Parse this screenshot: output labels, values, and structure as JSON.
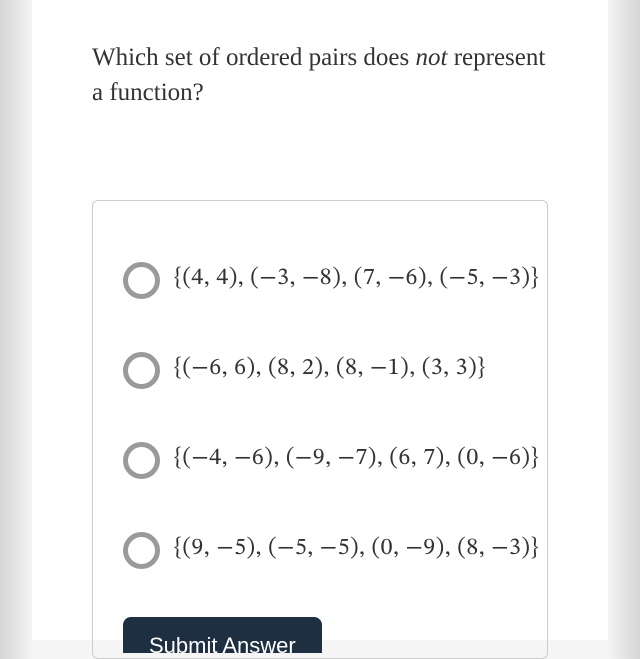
{
  "question": {
    "prefix": "Which set of ordered pairs does ",
    "emph": "not",
    "suffix": " represent a function?"
  },
  "options": [
    "{(4, 4), (−3, −8), (7, −6), (−5, −3)}",
    "{(−6, 6), (8, 2), (8, −1), (3, 3)}",
    "{(−4, −6), (−9, −7), (6, 7), (0, −6)}",
    "{(9, −5), (−5, −5), (0, −9), (8, −3)}"
  ],
  "submit_label": "Submit Answer",
  "colors": {
    "page_bg": "#ffffff",
    "outer_bg": "#f5f5f5",
    "text": "#333333",
    "border": "#cccccc",
    "radio_ring": "#9a9a9a",
    "submit_bg": "#1e2f42",
    "submit_text": "#ffffff"
  }
}
